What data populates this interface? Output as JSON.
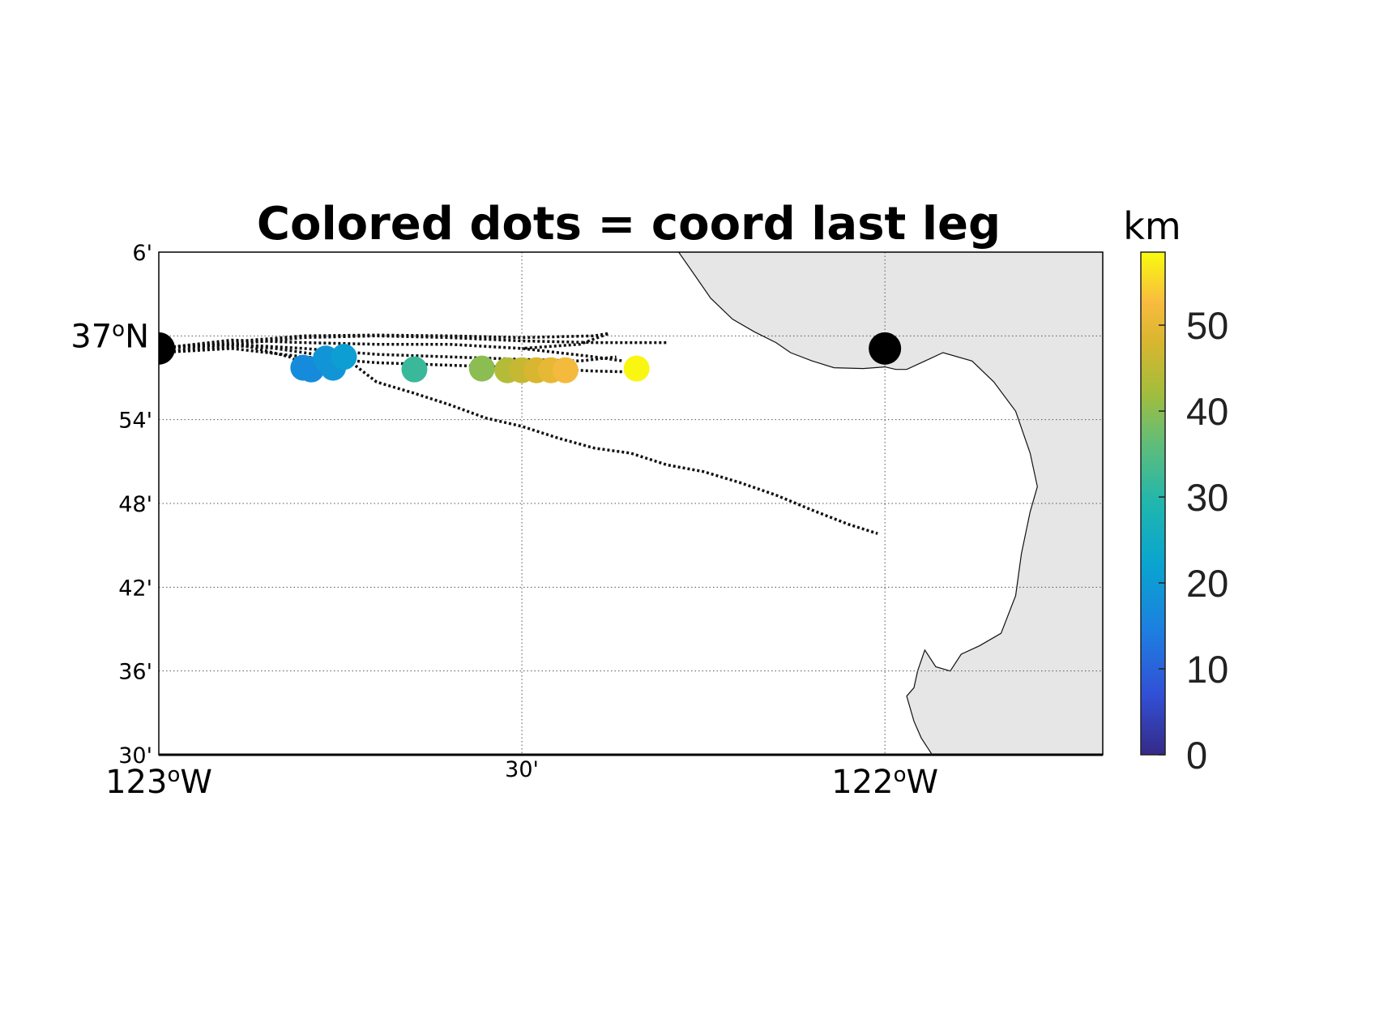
{
  "map": {
    "title": "Colored dots = coord last leg",
    "colorbar_label": "km",
    "colorbar_ticks": [
      "0",
      "10",
      "20",
      "30",
      "40",
      "50"
    ],
    "lat_ticks": [
      {
        "lat": 37.1,
        "text": "6'"
      },
      {
        "lat": 37.0,
        "deg": "37",
        "sup": "o",
        "hemi": "N"
      },
      {
        "lat": 36.9,
        "text": "54'"
      },
      {
        "lat": 36.8,
        "text": "48'"
      },
      {
        "lat": 36.7,
        "text": "42'"
      },
      {
        "lat": 36.6,
        "text": "36'"
      },
      {
        "lat": 36.5,
        "text": "30'"
      }
    ],
    "lon_ticks": [
      {
        "lon": -123.0,
        "deg": "123",
        "sup": "o",
        "hemi": "W"
      },
      {
        "lon": -122.5,
        "text": "30'"
      },
      {
        "lon": -122.0,
        "deg": "122",
        "sup": "o",
        "hemi": "W"
      }
    ],
    "extent": {
      "lon": [
        -123.0,
        -121.7
      ],
      "lat": [
        36.5,
        37.1
      ]
    },
    "colorbar_range_km": [
      0,
      58.5
    ],
    "land_color": "#e6e6e6",
    "grid": "dotted",
    "endpoints": [
      {
        "lon": -123.0,
        "lat": 36.985
      },
      {
        "lon": -122.0,
        "lat": 36.985
      }
    ],
    "colored_dots": [
      {
        "lon": -122.801,
        "lat": 36.962,
        "km": 17
      },
      {
        "lon": -122.79,
        "lat": 36.96,
        "km": 17
      },
      {
        "lon": -122.77,
        "lat": 36.973,
        "km": 19
      },
      {
        "lon": -122.76,
        "lat": 36.962,
        "km": 19
      },
      {
        "lon": -122.745,
        "lat": 36.975,
        "km": 21
      },
      {
        "lon": -122.648,
        "lat": 36.96,
        "km": 32
      },
      {
        "lon": -122.555,
        "lat": 36.961,
        "km": 40
      },
      {
        "lon": -122.52,
        "lat": 36.959,
        "km": 44
      },
      {
        "lon": -122.5,
        "lat": 36.959,
        "km": 46
      },
      {
        "lon": -122.48,
        "lat": 36.959,
        "km": 48
      },
      {
        "lon": -122.46,
        "lat": 36.959,
        "km": 50
      },
      {
        "lon": -122.44,
        "lat": 36.959,
        "km": 52
      },
      {
        "lon": -122.342,
        "lat": 36.961,
        "km": 58
      }
    ],
    "tracks": [
      [
        [
          -123.0,
          36.985
        ],
        [
          -122.9,
          36.995
        ],
        [
          -122.8,
          36.992
        ],
        [
          -122.7,
          36.99
        ],
        [
          -122.6,
          36.99
        ],
        [
          -122.5,
          36.985
        ],
        [
          -122.4,
          36.975
        ],
        [
          -122.36,
          36.97
        ]
      ],
      [
        [
          -123.0,
          36.985
        ],
        [
          -122.9,
          36.99
        ],
        [
          -122.8,
          36.985
        ],
        [
          -122.7,
          36.978
        ],
        [
          -122.6,
          36.975
        ],
        [
          -122.5,
          36.972
        ],
        [
          -122.42,
          36.97
        ],
        [
          -122.37,
          36.975
        ]
      ],
      [
        [
          -123.0,
          36.985
        ],
        [
          -122.9,
          36.99
        ],
        [
          -122.8,
          36.998
        ],
        [
          -122.7,
          37.0
        ],
        [
          -122.6,
          36.998
        ],
        [
          -122.5,
          36.994
        ],
        [
          -122.4,
          36.992
        ],
        [
          -122.3,
          36.992
        ]
      ],
      [
        [
          -123.0,
          36.985
        ],
        [
          -122.9,
          36.993
        ],
        [
          -122.8,
          37.0
        ],
        [
          -122.7,
          37.001
        ],
        [
          -122.6,
          37.0
        ],
        [
          -122.5,
          36.998
        ],
        [
          -122.4,
          37.0
        ],
        [
          -122.38,
          37.003
        ],
        [
          -122.42,
          36.99
        ],
        [
          -122.5,
          36.985
        ]
      ],
      [
        [
          -123.0,
          36.98
        ],
        [
          -122.9,
          36.985
        ],
        [
          -122.8,
          36.975
        ],
        [
          -122.7,
          36.968
        ],
        [
          -122.6,
          36.965
        ],
        [
          -122.5,
          36.962
        ],
        [
          -122.4,
          36.958
        ],
        [
          -122.35,
          36.957
        ]
      ],
      [
        [
          -123.0,
          36.98
        ],
        [
          -122.95,
          36.985
        ],
        [
          -122.88,
          36.988
        ],
        [
          -122.82,
          36.975
        ],
        [
          -122.79,
          36.962
        ]
      ],
      [
        [
          -123.0,
          36.985
        ],
        [
          -122.92,
          36.99
        ],
        [
          -122.84,
          36.985
        ],
        [
          -122.76,
          36.975
        ],
        [
          -122.73,
          36.965
        ],
        [
          -122.7,
          36.945
        ],
        [
          -122.65,
          36.932
        ],
        [
          -122.6,
          36.918
        ],
        [
          -122.55,
          36.902
        ],
        [
          -122.5,
          36.892
        ],
        [
          -122.45,
          36.878
        ],
        [
          -122.4,
          36.866
        ],
        [
          -122.35,
          36.86
        ],
        [
          -122.3,
          36.846
        ],
        [
          -122.25,
          36.838
        ],
        [
          -122.2,
          36.825
        ],
        [
          -122.15,
          36.81
        ],
        [
          -122.1,
          36.792
        ],
        [
          -122.05,
          36.775
        ],
        [
          -122.01,
          36.764
        ]
      ]
    ],
    "coastline": [
      [
        -122.284,
        37.1
      ],
      [
        -122.26,
        37.07
      ],
      [
        -122.24,
        37.045
      ],
      [
        -122.21,
        37.02
      ],
      [
        -122.18,
        37.005
      ],
      [
        -122.15,
        36.992
      ],
      [
        -122.13,
        36.98
      ],
      [
        -122.1,
        36.97
      ],
      [
        -122.07,
        36.962
      ],
      [
        -122.03,
        36.961
      ],
      [
        -122.0,
        36.963
      ],
      [
        -121.985,
        36.96
      ],
      [
        -121.97,
        36.96
      ],
      [
        -121.94,
        36.972
      ],
      [
        -121.92,
        36.98
      ],
      [
        -121.88,
        36.97
      ],
      [
        -121.85,
        36.945
      ],
      [
        -121.82,
        36.91
      ],
      [
        -121.8,
        36.86
      ],
      [
        -121.79,
        36.82
      ],
      [
        -121.8,
        36.79
      ],
      [
        -121.812,
        36.74
      ],
      [
        -121.82,
        36.69
      ],
      [
        -121.84,
        36.645
      ],
      [
        -121.87,
        36.63
      ],
      [
        -121.895,
        36.62
      ],
      [
        -121.91,
        36.6
      ],
      [
        -121.93,
        36.605
      ],
      [
        -121.945,
        36.625
      ],
      [
        -121.955,
        36.6
      ],
      [
        -121.96,
        36.58
      ],
      [
        -121.97,
        36.57
      ],
      [
        -121.96,
        36.54
      ],
      [
        -121.95,
        36.52
      ],
      [
        -121.935,
        36.5
      ]
    ]
  }
}
